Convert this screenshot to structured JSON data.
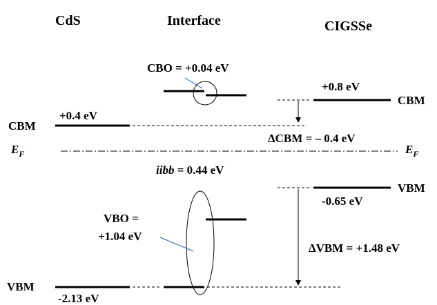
{
  "columns": {
    "cds": "CdS",
    "interface": "Interface",
    "cigsse": "CIGSSe"
  },
  "labels": {
    "cbo": "CBO =  +0.04 eV",
    "cigsse_cbm_value": "+0.8 eV",
    "cigsse_cbm": "CBM",
    "cds_cbm": "CBM",
    "cds_cbm_value": "+0.4 eV",
    "delta_cbm": "ΔCBM = – 0.4 eV",
    "fermi_symbol": "E",
    "fermi_subscript": "F",
    "iibb_symbol": "iibb",
    "iibb_value": " = 0.44 eV",
    "cigsse_vbm": "VBM",
    "cigsse_vbm_value": "-0.65 eV",
    "vbo_line1": "VBO =",
    "vbo_line2": "+1.04 eV",
    "delta_vbm": "ΔVBM = +1.48 eV",
    "cds_vbm": "VBM",
    "cds_vbm_value": "-2.13 eV"
  },
  "colors": {
    "lines": "#000000",
    "leader": "#4a7fc1"
  }
}
